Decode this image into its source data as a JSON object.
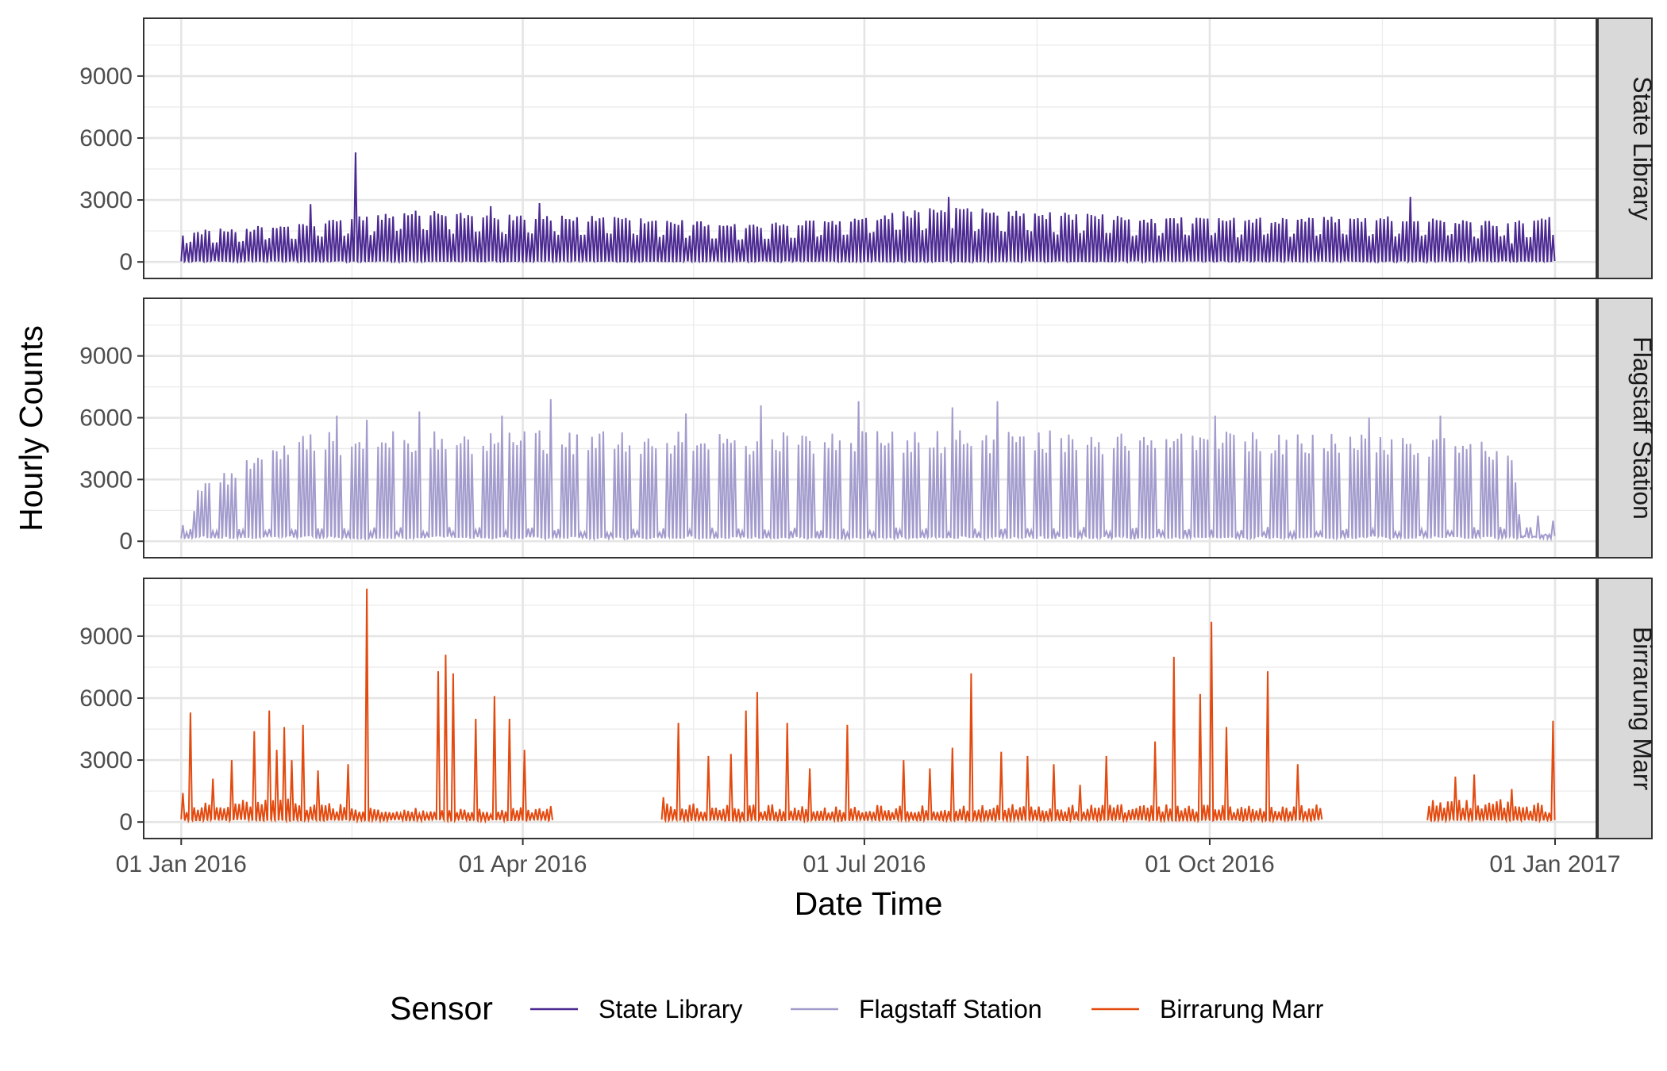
{
  "chart_data": {
    "type": "line",
    "facet": "rows",
    "xlabel": "Date Time",
    "ylabel": "Hourly Counts",
    "x_range": [
      "2015-12-22",
      "2017-01-12"
    ],
    "x_ticks": [
      "2016-01-01",
      "2016-04-01",
      "2016-07-01",
      "2016-10-01",
      "2017-01-01"
    ],
    "x_tick_labels": [
      "01 Jan 2016",
      "01 Apr 2016",
      "01 Jul 2016",
      "01 Oct 2016",
      "01 Jan 2017"
    ],
    "ylim": [
      -800,
      11800
    ],
    "y_ticks": [
      0,
      3000,
      6000,
      9000
    ],
    "y_tick_labels": [
      "0",
      "3000",
      "6000",
      "9000"
    ],
    "grid": true,
    "legend": {
      "title": "Sensor",
      "position": "bottom"
    },
    "series": [
      {
        "name": "State Library",
        "color": "#4B2991",
        "facet_label": "State Library",
        "sampling": "daily peak hourly count; daily minimum about 50",
        "weekly_cycle": true,
        "gaps": [],
        "anchors": [
          [
            "2016-01-01",
            1500
          ],
          [
            "2016-01-10",
            1600
          ],
          [
            "2016-02-01",
            1900
          ],
          [
            "2016-02-15",
            2200
          ],
          [
            "2016-03-01",
            2500
          ],
          [
            "2016-04-01",
            2350
          ],
          [
            "2016-05-01",
            2150
          ],
          [
            "2016-06-01",
            1850
          ],
          [
            "2016-07-01",
            2200
          ],
          [
            "2016-07-20",
            2700
          ],
          [
            "2016-08-15",
            2450
          ],
          [
            "2016-09-15",
            2200
          ],
          [
            "2016-10-15",
            2150
          ],
          [
            "2016-11-15",
            2250
          ],
          [
            "2016-12-15",
            2000
          ],
          [
            "2016-12-31",
            2300
          ]
        ],
        "spikes": [
          [
            "2016-02-16",
            5300
          ],
          [
            "2016-02-04",
            2800
          ],
          [
            "2016-03-23",
            2700
          ],
          [
            "2016-04-05",
            2850
          ],
          [
            "2016-07-23",
            3150
          ],
          [
            "2016-11-23",
            3150
          ],
          [
            "2016-12-20",
            900
          ]
        ]
      },
      {
        "name": "Flagstaff Station",
        "color": "#A29CCD",
        "facet_label": "Flagstaff Station",
        "sampling": "daily peak hourly count; daily minimum about 200",
        "weekly_cycle": true,
        "gaps": [],
        "anchors": [
          [
            "2016-01-01",
            800
          ],
          [
            "2016-01-03",
            200
          ],
          [
            "2016-01-05",
            2800
          ],
          [
            "2016-01-12",
            3400
          ],
          [
            "2016-01-26",
            5000
          ],
          [
            "2016-02-10",
            5350
          ],
          [
            "2016-04-01",
            5400
          ],
          [
            "2016-06-01",
            5350
          ],
          [
            "2016-08-01",
            5400
          ],
          [
            "2016-10-01",
            5350
          ],
          [
            "2016-11-20",
            5300
          ],
          [
            "2016-12-10",
            5200
          ],
          [
            "2016-12-20",
            4500
          ],
          [
            "2016-12-23",
            200
          ],
          [
            "2016-12-31",
            400
          ]
        ],
        "spikes": [
          [
            "2016-02-11",
            6100
          ],
          [
            "2016-02-19",
            5900
          ],
          [
            "2016-03-04",
            6300
          ],
          [
            "2016-03-26",
            6100
          ],
          [
            "2016-04-08",
            6900
          ],
          [
            "2016-05-14",
            6200
          ],
          [
            "2016-06-03",
            6600
          ],
          [
            "2016-06-29",
            6800
          ],
          [
            "2016-07-24",
            6500
          ],
          [
            "2016-08-05",
            6800
          ],
          [
            "2016-10-02",
            6100
          ],
          [
            "2016-11-12",
            6000
          ],
          [
            "2016-12-01",
            6100
          ],
          [
            "2016-12-27",
            1250
          ],
          [
            "2016-12-31",
            1000
          ]
        ]
      },
      {
        "name": "Birrarung Marr",
        "color": "#E34A0F",
        "facet_label": "Birrarung Marr",
        "sampling": "daily peak hourly count; daily minimum about 100",
        "weekly_cycle": false,
        "gaps": [
          [
            "2016-04-09",
            "2016-05-07"
          ],
          [
            "2016-10-31",
            "2016-11-27"
          ]
        ],
        "anchors": [
          [
            "2016-01-01",
            800
          ],
          [
            "2016-01-15",
            1200
          ],
          [
            "2016-02-01",
            1100
          ],
          [
            "2016-02-20",
            700
          ],
          [
            "2016-03-15",
            600
          ],
          [
            "2016-04-08",
            800
          ],
          [
            "2016-05-08",
            900
          ],
          [
            "2016-06-15",
            800
          ],
          [
            "2016-08-01",
            850
          ],
          [
            "2016-10-30",
            800
          ],
          [
            "2016-11-28",
            1000
          ],
          [
            "2016-12-15",
            1200
          ],
          [
            "2016-12-31",
            800
          ]
        ],
        "spikes": [
          [
            "2016-01-01",
            1400
          ],
          [
            "2016-01-03",
            5300
          ],
          [
            "2016-01-09",
            2100
          ],
          [
            "2016-01-14",
            3000
          ],
          [
            "2016-01-20",
            4400
          ],
          [
            "2016-01-24",
            5400
          ],
          [
            "2016-01-26",
            3500
          ],
          [
            "2016-01-28",
            4600
          ],
          [
            "2016-01-30",
            3000
          ],
          [
            "2016-02-02",
            4700
          ],
          [
            "2016-02-06",
            2500
          ],
          [
            "2016-02-14",
            2800
          ],
          [
            "2016-02-19",
            11300
          ],
          [
            "2016-03-09",
            7300
          ],
          [
            "2016-03-11",
            8100
          ],
          [
            "2016-03-13",
            7200
          ],
          [
            "2016-03-19",
            5000
          ],
          [
            "2016-03-24",
            6100
          ],
          [
            "2016-03-28",
            5000
          ],
          [
            "2016-04-01",
            3500
          ],
          [
            "2016-05-08",
            1200
          ],
          [
            "2016-05-12",
            4800
          ],
          [
            "2016-05-20",
            3200
          ],
          [
            "2016-05-26",
            3300
          ],
          [
            "2016-05-30",
            5400
          ],
          [
            "2016-06-02",
            6300
          ],
          [
            "2016-06-10",
            4800
          ],
          [
            "2016-06-16",
            2600
          ],
          [
            "2016-06-26",
            4700
          ],
          [
            "2016-07-11",
            3000
          ],
          [
            "2016-07-18",
            2600
          ],
          [
            "2016-07-24",
            3600
          ],
          [
            "2016-07-29",
            7200
          ],
          [
            "2016-08-06",
            3400
          ],
          [
            "2016-08-13",
            3200
          ],
          [
            "2016-08-20",
            2800
          ],
          [
            "2016-08-27",
            1800
          ],
          [
            "2016-09-03",
            3200
          ],
          [
            "2016-09-16",
            3900
          ],
          [
            "2016-09-21",
            8000
          ],
          [
            "2016-09-28",
            6200
          ],
          [
            "2016-10-01",
            9700
          ],
          [
            "2016-10-05",
            4600
          ],
          [
            "2016-10-16",
            7300
          ],
          [
            "2016-10-24",
            2800
          ],
          [
            "2016-12-05",
            2200
          ],
          [
            "2016-12-10",
            2300
          ],
          [
            "2016-12-20",
            1600
          ],
          [
            "2016-12-31",
            4900
          ]
        ]
      }
    ]
  }
}
